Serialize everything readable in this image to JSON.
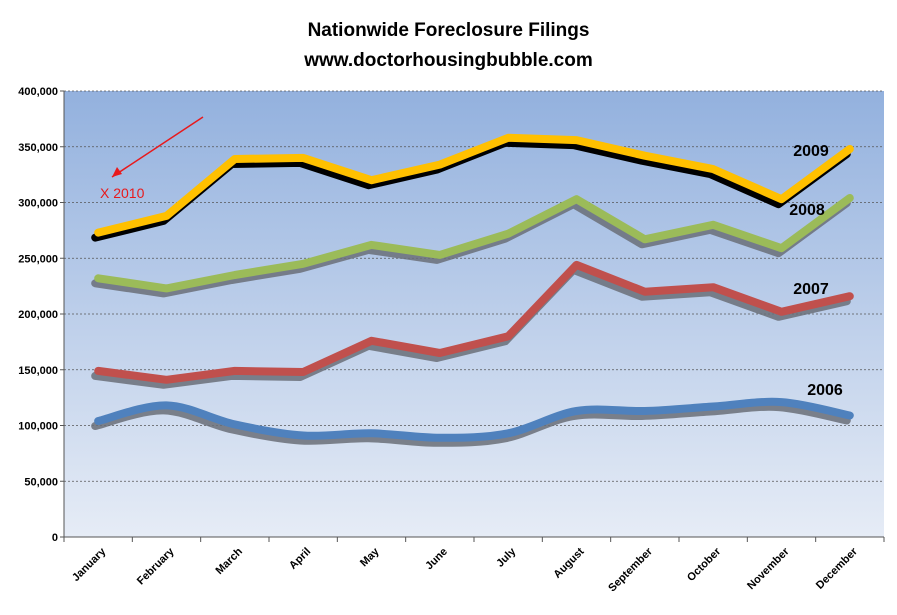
{
  "chart_data": {
    "type": "line",
    "title": "Nationwide Foreclosure Filings",
    "subtitle": "www.doctorhousingbubble.com",
    "categories": [
      "January",
      "February",
      "March",
      "April",
      "May",
      "June",
      "July",
      "August",
      "September",
      "October",
      "November",
      "December"
    ],
    "ylim": [
      0,
      400000
    ],
    "yticks": [
      0,
      50000,
      100000,
      150000,
      200000,
      250000,
      300000,
      350000,
      400000
    ],
    "ytick_labels": [
      "0",
      "50,000",
      "100,000",
      "150,000",
      "200,000",
      "250,000",
      "300,000",
      "350,000",
      "400,000"
    ],
    "grid": true,
    "series": [
      {
        "name": "2009",
        "color": "#ffc000",
        "smooth": false,
        "values": [
          273000,
          288000,
          339000,
          340000,
          320000,
          334000,
          358000,
          356000,
          342000,
          330000,
          303000,
          348000
        ]
      },
      {
        "name": "2008",
        "color": "#9bbb59",
        "smooth": false,
        "values": [
          232000,
          223000,
          235000,
          245000,
          262000,
          253000,
          272000,
          303000,
          267000,
          280000,
          259000,
          304000
        ]
      },
      {
        "name": "2007",
        "color": "#c0504d",
        "smooth": false,
        "values": [
          149000,
          141000,
          149000,
          148000,
          176000,
          165000,
          180000,
          244000,
          220000,
          224000,
          202000,
          216000
        ]
      },
      {
        "name": "2006",
        "color": "#4f81bd",
        "smooth": true,
        "values": [
          104000,
          118000,
          101000,
          91000,
          93000,
          89000,
          93000,
          113000,
          113000,
          117000,
          121000,
          109000
        ]
      }
    ],
    "annotations": [
      {
        "text": "X 2010",
        "color": "#e8191c"
      }
    ]
  }
}
